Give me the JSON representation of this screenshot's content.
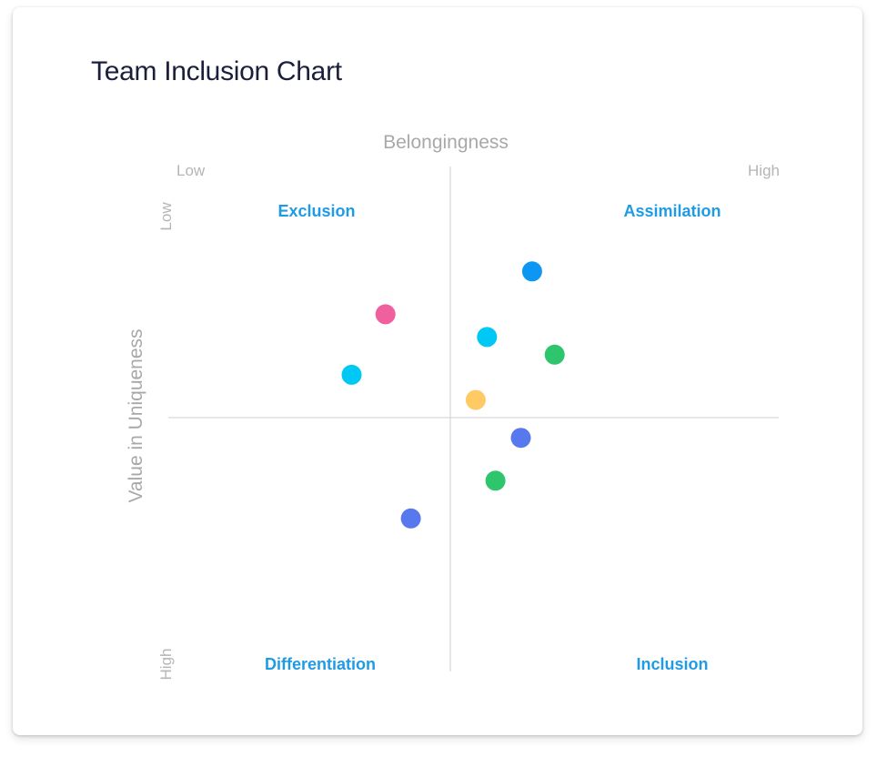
{
  "title": "Team Inclusion Chart",
  "chart_data": {
    "type": "scatter",
    "title": "Team Inclusion Chart",
    "xlabel": "Belongingness",
    "ylabel": "Value in Uniqueness",
    "x_ends": {
      "low": "Low",
      "high": "High"
    },
    "y_ends": {
      "low": "Low",
      "high": "High"
    },
    "xlim": [
      -1,
      1
    ],
    "ylim": [
      -1,
      1
    ],
    "grid": false,
    "quadrants": {
      "top_left": "Exclusion",
      "top_right": "Assimilation",
      "bottom_left": "Differentiation",
      "bottom_right": "Inclusion"
    },
    "points": [
      {
        "x": 0.29,
        "y": 0.58,
        "color": "#0d96f2"
      },
      {
        "x": -0.23,
        "y": 0.41,
        "color": "#f0609e"
      },
      {
        "x": 0.13,
        "y": 0.32,
        "color": "#00c8f5"
      },
      {
        "x": 0.37,
        "y": 0.25,
        "color": "#2fc56c"
      },
      {
        "x": -0.35,
        "y": 0.17,
        "color": "#00c8f5"
      },
      {
        "x": 0.09,
        "y": 0.07,
        "color": "#ffca63"
      },
      {
        "x": 0.25,
        "y": -0.08,
        "color": "#5878ee"
      },
      {
        "x": 0.16,
        "y": -0.25,
        "color": "#2fc56c"
      },
      {
        "x": -0.14,
        "y": -0.4,
        "color": "#5878ee"
      }
    ]
  }
}
